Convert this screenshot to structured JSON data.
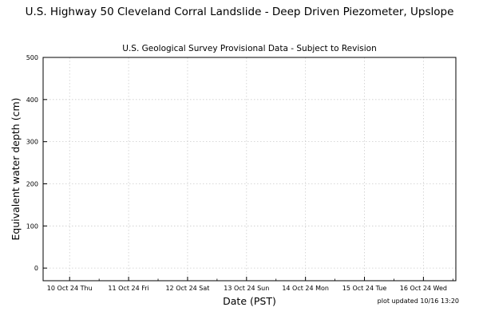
{
  "chart_data": {
    "type": "line",
    "title": "U.S. Highway 50 Cleveland Corral Landslide - Deep Driven Piezometer, Upslope",
    "subtitle": "U.S. Geological Survey Provisional Data - Subject to Revision",
    "xlabel": "Date (PST)",
    "ylabel": "Equivalent water depth (cm)",
    "ylim": [
      -30,
      500
    ],
    "y_ticks": [
      0,
      100,
      200,
      300,
      400,
      500
    ],
    "x_ticks": [
      {
        "label": "10 Oct 24 Thu",
        "value": 0.45
      },
      {
        "label": "11 Oct 24 Fri",
        "value": 1.45
      },
      {
        "label": "12 Oct 24 Sat",
        "value": 2.45
      },
      {
        "label": "13 Oct 24 Sun",
        "value": 3.45
      },
      {
        "label": "14 Oct 24 Mon",
        "value": 4.45
      },
      {
        "label": "15 Oct 24 Tue",
        "value": 5.45
      },
      {
        "label": "16 Oct 24 Wed",
        "value": 6.45
      }
    ],
    "xlim": [
      0,
      7
    ],
    "grid": true,
    "series": [],
    "footnote": "plot updated 10/16 13:20"
  }
}
